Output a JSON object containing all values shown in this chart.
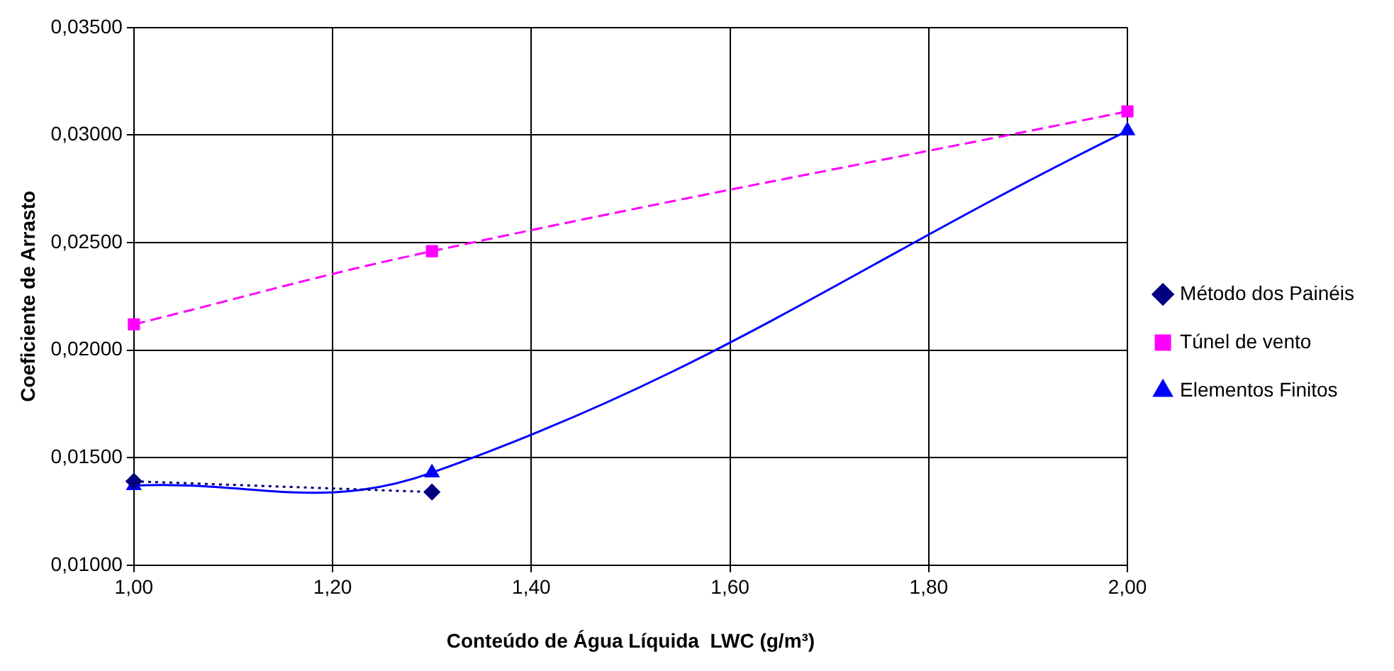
{
  "chart_data": {
    "type": "line",
    "xlabel": "Conteúdo de Água Líquida  LWC (g/m³)",
    "ylabel": "Coeficiente de Arrasto",
    "xlim": [
      1,
      2
    ],
    "xticks": [
      {
        "value": 1,
        "label": "1,00"
      },
      {
        "value": 1.2,
        "label": "1,20"
      },
      {
        "value": 1.4,
        "label": "1,40"
      },
      {
        "value": 1.6,
        "label": "1,60"
      },
      {
        "value": 1.8,
        "label": "1,80"
      },
      {
        "value": 2,
        "label": "2,00"
      }
    ],
    "ylim": [
      0.01,
      0.035
    ],
    "yticks": [
      {
        "value": 0.01,
        "label": "0,01000"
      },
      {
        "value": 0.015,
        "label": "0,01500"
      },
      {
        "value": 0.02,
        "label": "0,02000"
      },
      {
        "value": 0.025,
        "label": "0,02500"
      },
      {
        "value": 0.03,
        "label": "0,03000"
      },
      {
        "value": 0.035,
        "label": "0,03500"
      }
    ],
    "grid": true,
    "legend": "right",
    "series": [
      {
        "name": "Método dos Painéis",
        "color": "#000080",
        "x": [
          1,
          1.3
        ],
        "values": [
          0.0139,
          0.0134
        ],
        "marker": "diamond",
        "line_style": "dotted"
      },
      {
        "name": "Túnel de vento",
        "color": "#ff00ff",
        "x": [
          1,
          1.3,
          2
        ],
        "values": [
          0.0212,
          0.0246,
          0.0311
        ],
        "marker": "square",
        "line_style": "dashed"
      },
      {
        "name": "Elementos Finitos",
        "color": "#0000ff",
        "x": [
          1,
          1.3,
          2
        ],
        "values": [
          0.0137,
          0.0143,
          0.0302
        ],
        "marker": "triangle",
        "line_style": "solid"
      }
    ]
  }
}
